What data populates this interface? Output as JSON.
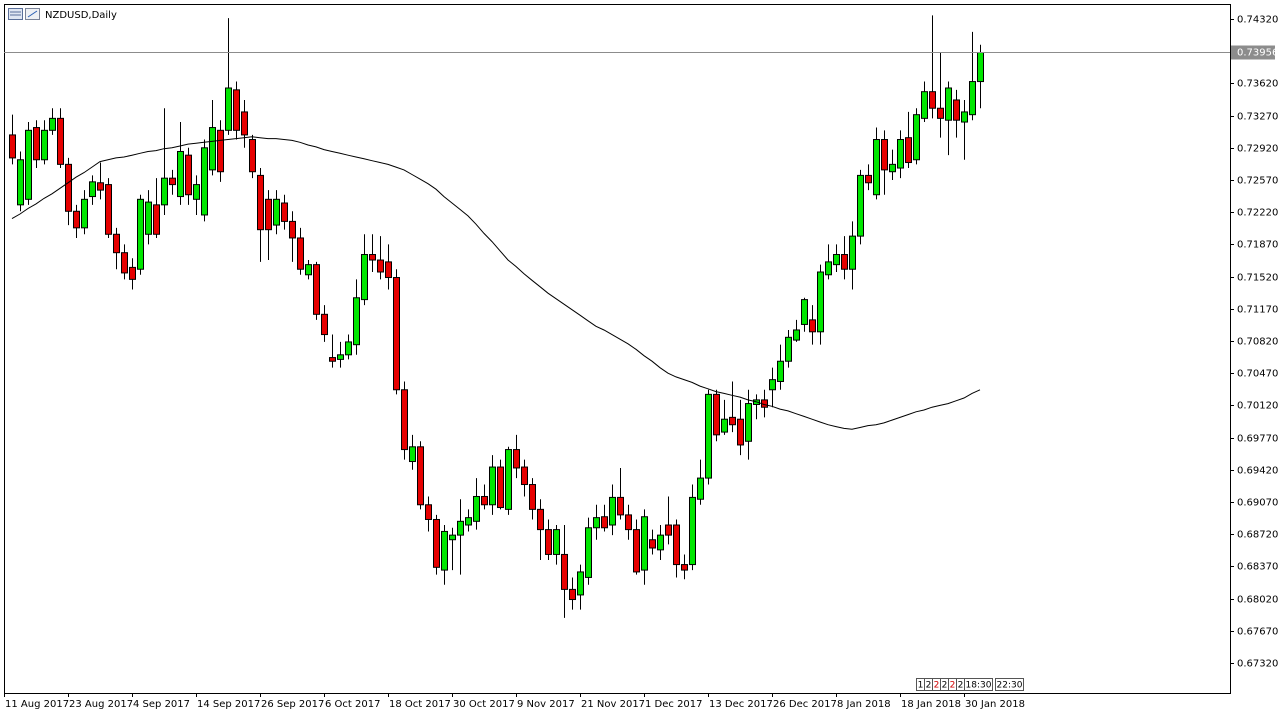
{
  "chart_data": {
    "type": "candlestick",
    "title": "NZDUSD,Daily",
    "up_color": "#00e600",
    "down_color": "#e60000",
    "categories": [
      "11 Aug 2017",
      null,
      null,
      null,
      null,
      null,
      null,
      null,
      "23 Aug 2017",
      null,
      null,
      null,
      null,
      null,
      null,
      null,
      "4 Sep 2017",
      null,
      null,
      null,
      null,
      null,
      null,
      null,
      "14 Sep 2017",
      null,
      null,
      null,
      null,
      null,
      null,
      null,
      "26 Sep 2017",
      null,
      null,
      null,
      null,
      null,
      null,
      null,
      "6 Oct 2017",
      null,
      null,
      null,
      null,
      null,
      null,
      null,
      "18 Oct 2017",
      null,
      null,
      null,
      null,
      null,
      null,
      null,
      "30 Oct 2017",
      null,
      null,
      null,
      null,
      null,
      null,
      null,
      "9 Nov 2017",
      null,
      null,
      null,
      null,
      null,
      null,
      null,
      "21 Nov 2017",
      null,
      null,
      null,
      null,
      null,
      null,
      null,
      "1 Dec 2017",
      null,
      null,
      null,
      null,
      null,
      null,
      null,
      "13 Dec 2017",
      null,
      null,
      null,
      null,
      null,
      null,
      null,
      "26 Dec 2017",
      null,
      null,
      null,
      null,
      null,
      null,
      null,
      "8 Jan 2018",
      null,
      null,
      null,
      null,
      null,
      null,
      null,
      "18 Jan 2018",
      null,
      null,
      null,
      null,
      null,
      null,
      null,
      "30 Jan 2018",
      null
    ],
    "open": [
      0.7306,
      0.723,
      0.7236,
      0.7314,
      0.7279,
      0.7311,
      0.7324,
      0.7274,
      0.7223,
      0.7205,
      0.7239,
      0.7254,
      0.7252,
      0.7198,
      0.7178,
      0.7162,
      0.716,
      0.7198,
      0.723,
      0.723,
      0.7259,
      0.7239,
      0.7284,
      0.7236,
      0.7219,
      0.7268,
      0.7311,
      0.7311,
      0.7355,
      0.7331,
      0.7301,
      0.7262,
      0.7236,
      0.7208,
      0.7232,
      0.7212,
      0.7194,
      0.7154,
      0.7165,
      0.7111,
      0.7064,
      0.7062,
      0.7067,
      0.7078,
      0.7127,
      0.7176,
      0.717,
      0.7168,
      0.7151,
      0.7029,
      0.6951,
      0.6967,
      0.6904,
      0.6888,
      0.6833,
      0.6866,
      0.6871,
      0.6882,
      0.6886,
      0.6913,
      0.6904,
      0.6945,
      0.6899,
      0.6964,
      0.6945,
      0.6926,
      0.6899,
      0.6877,
      0.685,
      0.685,
      0.6812,
      0.6806,
      0.6825,
      0.6879,
      0.6891,
      0.6882,
      0.6912,
      0.6893,
      0.6877,
      0.6833,
      0.6866,
      0.6855,
      0.6882,
      0.6882,
      0.6839,
      0.6839,
      0.691,
      0.6933,
      0.7024,
      0.6983,
      0.6999,
      0.6997,
      0.6973,
      0.7013,
      0.7018,
      0.7029,
      0.7038,
      0.706,
      0.7083,
      0.71,
      0.7105,
      0.7092,
      0.7154,
      0.7165,
      0.7176,
      0.716,
      0.7196,
      0.7262,
      0.7241,
      0.7301,
      0.7266,
      0.727,
      0.7303,
      0.7279,
      0.7324,
      0.7353,
      0.7335,
      0.7322,
      0.7344,
      0.732,
      0.7328,
      0.7364
    ],
    "high": [
      0.7328,
      0.7288,
      0.732,
      0.7322,
      0.7322,
      0.7335,
      0.7335,
      0.7281,
      0.723,
      0.7246,
      0.7262,
      0.7276,
      0.7259,
      0.7205,
      0.7187,
      0.7172,
      0.7241,
      0.7246,
      0.7259,
      0.7335,
      0.7268,
      0.732,
      0.7292,
      0.7262,
      0.7301,
      0.7344,
      0.7322,
      0.7433,
      0.7364,
      0.7344,
      0.7306,
      0.727,
      0.7246,
      0.7246,
      0.7241,
      0.7223,
      0.7205,
      0.717,
      0.7168,
      0.7121,
      0.7089,
      0.7081,
      0.7089,
      0.7149,
      0.7198,
      0.7198,
      0.7196,
      0.7187,
      0.716,
      0.7038,
      0.698,
      0.6973,
      0.6913,
      0.6893,
      0.6882,
      0.6879,
      0.691,
      0.6899,
      0.6933,
      0.6926,
      0.6958,
      0.6953,
      0.6967,
      0.698,
      0.6953,
      0.6933,
      0.691,
      0.6888,
      0.6882,
      0.6882,
      0.6825,
      0.6839,
      0.689,
      0.6904,
      0.6904,
      0.6926,
      0.6944,
      0.6904,
      0.6888,
      0.6899,
      0.6877,
      0.6882,
      0.6913,
      0.6888,
      0.685,
      0.6926,
      0.6953,
      0.7029,
      0.7029,
      0.7018,
      0.7038,
      0.7018,
      0.7029,
      0.7024,
      0.7029,
      0.7053,
      0.7078,
      0.7094,
      0.7105,
      0.7129,
      0.7121,
      0.7165,
      0.7187,
      0.7187,
      0.7196,
      0.7212,
      0.7268,
      0.7274,
      0.7314,
      0.7311,
      0.729,
      0.7311,
      0.7331,
      0.7335,
      0.7364,
      0.7436,
      0.7396,
      0.7364,
      0.7355,
      0.7344,
      0.7418,
      0.7404
    ],
    "low": [
      0.7274,
      0.7223,
      0.723,
      0.727,
      0.7274,
      0.7306,
      0.727,
      0.7208,
      0.7194,
      0.7198,
      0.723,
      0.7236,
      0.7194,
      0.716,
      0.7149,
      0.7138,
      0.7154,
      0.7187,
      0.7194,
      0.7219,
      0.7241,
      0.723,
      0.723,
      0.7219,
      0.7212,
      0.7262,
      0.7255,
      0.7306,
      0.7301,
      0.7292,
      0.7259,
      0.7168,
      0.717,
      0.7198,
      0.7203,
      0.7168,
      0.7154,
      0.7149,
      0.7105,
      0.7081,
      0.7053,
      0.7053,
      0.7062,
      0.7067,
      0.7121,
      0.7157,
      0.7149,
      0.7138,
      0.7024,
      0.6953,
      0.6942,
      0.6899,
      0.6875,
      0.6828,
      0.6817,
      0.6833,
      0.6828,
      0.6875,
      0.6877,
      0.6899,
      0.6893,
      0.6899,
      0.6893,
      0.6933,
      0.6913,
      0.6888,
      0.6844,
      0.6844,
      0.6839,
      0.6781,
      0.679,
      0.679,
      0.6817,
      0.6866,
      0.6875,
      0.6871,
      0.6888,
      0.6866,
      0.6828,
      0.6817,
      0.685,
      0.6844,
      0.6861,
      0.6825,
      0.6823,
      0.6833,
      0.6904,
      0.6926,
      0.6973,
      0.698,
      0.6983,
      0.6958,
      0.6953,
      0.6997,
      0.6999,
      0.701,
      0.7029,
      0.7053,
      0.7081,
      0.7092,
      0.7078,
      0.7078,
      0.7149,
      0.7157,
      0.7149,
      0.7138,
      0.7187,
      0.7246,
      0.7236,
      0.7241,
      0.7257,
      0.7259,
      0.727,
      0.7274,
      0.732,
      0.7324,
      0.7303,
      0.7284,
      0.7303,
      0.7279,
      0.7322,
      0.7335
    ],
    "close": [
      0.7281,
      0.7279,
      0.7311,
      0.7279,
      0.7311,
      0.7324,
      0.7274,
      0.7223,
      0.7205,
      0.7236,
      0.7255,
      0.7246,
      0.7198,
      0.7178,
      0.7156,
      0.7149,
      0.7236,
      0.7233,
      0.7198,
      0.7259,
      0.7252,
      0.7288,
      0.7241,
      0.7252,
      0.7292,
      0.7314,
      0.7266,
      0.7357,
      0.7311,
      0.7306,
      0.7266,
      0.7203,
      0.7203,
      0.7236,
      0.7212,
      0.7194,
      0.716,
      0.7165,
      0.7111,
      0.7089,
      0.706,
      0.7067,
      0.7081,
      0.7129,
      0.7176,
      0.717,
      0.7157,
      0.7151,
      0.7029,
      0.6964,
      0.6967,
      0.6904,
      0.6888,
      0.6836,
      0.6875,
      0.6871,
      0.6886,
      0.689,
      0.6913,
      0.6904,
      0.6945,
      0.6901,
      0.6964,
      0.6944,
      0.6926,
      0.6899,
      0.6877,
      0.685,
      0.6877,
      0.6812,
      0.6801,
      0.6831,
      0.6879,
      0.689,
      0.6879,
      0.6912,
      0.6893,
      0.6877,
      0.6831,
      0.6891,
      0.6857,
      0.6871,
      0.6871,
      0.6839,
      0.6833,
      0.6912,
      0.6933,
      0.7024,
      0.698,
      0.6997,
      0.6991,
      0.6969,
      0.7014,
      0.7018,
      0.701,
      0.704,
      0.706,
      0.7086,
      0.7094,
      0.7127,
      0.7092,
      0.7157,
      0.7168,
      0.7176,
      0.716,
      0.7196,
      0.7262,
      0.7254,
      0.7301,
      0.7268,
      0.7274,
      0.7301,
      0.7276,
      0.7328,
      0.7353,
      0.7335,
      0.7324,
      0.7357,
      0.7322,
      0.7331,
      0.7364,
      0.73956
    ],
    "ma": {
      "color": "#000000",
      "values": [
        0.7215,
        0.722,
        0.7226,
        0.7231,
        0.7237,
        0.7242,
        0.7248,
        0.7254,
        0.726,
        0.7265,
        0.7271,
        0.7277,
        0.7279,
        0.7281,
        0.7282,
        0.7284,
        0.7286,
        0.7288,
        0.7289,
        0.7291,
        0.7292,
        0.7294,
        0.7296,
        0.7297,
        0.7298,
        0.7299,
        0.73,
        0.7301,
        0.7302,
        0.7303,
        0.7304,
        0.7303,
        0.7302,
        0.7302,
        0.7301,
        0.73,
        0.7298,
        0.7295,
        0.7293,
        0.729,
        0.7288,
        0.7286,
        0.7284,
        0.7282,
        0.728,
        0.7278,
        0.7276,
        0.7274,
        0.7271,
        0.7268,
        0.7263,
        0.7258,
        0.7253,
        0.7247,
        0.7239,
        0.7232,
        0.7225,
        0.7218,
        0.7209,
        0.7199,
        0.719,
        0.718,
        0.717,
        0.7163,
        0.7155,
        0.7148,
        0.7141,
        0.7134,
        0.7128,
        0.7122,
        0.7116,
        0.711,
        0.7104,
        0.7098,
        0.7094,
        0.7089,
        0.7084,
        0.7079,
        0.7073,
        0.7066,
        0.706,
        0.7053,
        0.7047,
        0.7043,
        0.704,
        0.7037,
        0.7033,
        0.703,
        0.7027,
        0.7025,
        0.7023,
        0.7021,
        0.7018,
        0.7016,
        0.7013,
        0.7011,
        0.7008,
        0.7006,
        0.7003,
        0.7,
        0.6997,
        0.6994,
        0.6991,
        0.6989,
        0.6987,
        0.6986,
        0.6988,
        0.699,
        0.6991,
        0.6993,
        0.6996,
        0.6999,
        0.7002,
        0.7005,
        0.7007,
        0.701,
        0.7012,
        0.7014,
        0.7017,
        0.702,
        0.7025,
        0.7029
      ]
    },
    "ylim": [
      0.66994,
      0.74483
    ],
    "yticks": [
      {
        "value": 0.7432,
        "label": "0.74320"
      },
      {
        "value": 0.7362,
        "label": "0.73620"
      },
      {
        "value": 0.7327,
        "label": "0.73270"
      },
      {
        "value": 0.7292,
        "label": "0.72920"
      },
      {
        "value": 0.7257,
        "label": "0.72570"
      },
      {
        "value": 0.7222,
        "label": "0.72220"
      },
      {
        "value": 0.7187,
        "label": "0.71870"
      },
      {
        "value": 0.7152,
        "label": "0.71520"
      },
      {
        "value": 0.7117,
        "label": "0.71170"
      },
      {
        "value": 0.7082,
        "label": "0.70820"
      },
      {
        "value": 0.7047,
        "label": "0.70470"
      },
      {
        "value": 0.7012,
        "label": "0.70120"
      },
      {
        "value": 0.6977,
        "label": "0.69770"
      },
      {
        "value": 0.6942,
        "label": "0.69420"
      },
      {
        "value": 0.6907,
        "label": "0.69070"
      },
      {
        "value": 0.6872,
        "label": "0.68720"
      },
      {
        "value": 0.6837,
        "label": "0.68370"
      },
      {
        "value": 0.6802,
        "label": "0.68020"
      },
      {
        "value": 0.6767,
        "label": "0.67670"
      },
      {
        "value": 0.6732,
        "label": "0.67320"
      }
    ],
    "grid": false
  },
  "time_boxes": [
    "1",
    "2",
    "2",
    "2",
    "2",
    "2",
    "18:30",
    "22:30"
  ]
}
